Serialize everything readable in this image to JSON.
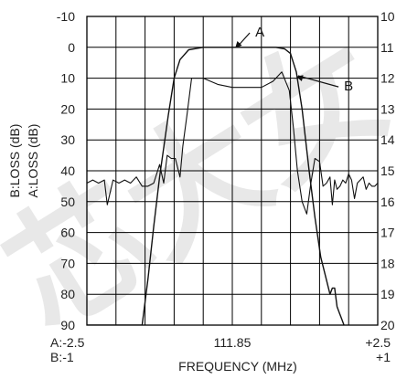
{
  "chart_data": {
    "type": "line",
    "title": "",
    "xlabel": "FREQUENCY (MHz)",
    "ylabel_left_outer": "B:LOSS (dB)",
    "ylabel_left_inner": "A:LOSS (dB)",
    "xlim": [
      -2.5,
      2.5
    ],
    "ylim": [
      -10,
      90
    ],
    "y_inverted": true,
    "grid": true,
    "x_tick_labels_top": [
      "A:-2.5",
      "111.85",
      "+2.5"
    ],
    "x_tick_labels_bottom": [
      "B:-1",
      "",
      "+1"
    ],
    "left_tick_values": [
      -10,
      0,
      10,
      20,
      30,
      40,
      50,
      60,
      70,
      80,
      90
    ],
    "left_tick_labels": [
      "-10",
      "0",
      "10",
      "20",
      "30",
      "40",
      "50",
      "60",
      "70",
      "80",
      "90"
    ],
    "right_tick_labels": [
      "10",
      "11",
      "12",
      "13",
      "14",
      "15",
      "16",
      "17",
      "18",
      "19",
      "20"
    ],
    "series": [
      {
        "name": "A",
        "x": [
          -2.5,
          -2.15,
          -2.0,
          -1.85,
          -1.7,
          -1.55,
          -1.45,
          -1.35,
          -1.25,
          -1.1,
          -1.0,
          -0.9,
          -0.75,
          -0.5,
          -0.25,
          0.0,
          0.25,
          0.5,
          0.75,
          0.9,
          1.0,
          1.1,
          1.2,
          1.32,
          1.42,
          1.52,
          1.6,
          1.68,
          1.72,
          1.76,
          1.8,
          1.84,
          1.88,
          1.92
        ],
        "y": [
          90,
          90,
          90,
          90,
          90,
          90,
          75,
          58,
          42,
          22,
          10,
          4,
          0.8,
          0,
          0,
          0,
          0,
          0,
          0,
          0.5,
          2,
          8,
          20,
          40,
          55,
          68,
          74,
          80,
          78,
          78,
          84,
          86,
          88,
          90
        ]
      },
      {
        "name": "B",
        "x": [
          -2.5,
          -2.4,
          -2.3,
          -2.2,
          -2.15,
          -2.05,
          -1.95,
          -1.85,
          -1.75,
          -1.65,
          -1.55,
          -1.45,
          -1.35,
          -1.25,
          -1.18,
          -1.12,
          -1.05,
          -0.98,
          -0.9,
          -0.85,
          -0.78,
          -0.7,
          -0.5,
          -0.25,
          0.0,
          0.25,
          0.5,
          0.7,
          0.85,
          0.98,
          1.05,
          1.12,
          1.2,
          1.28,
          1.35,
          1.42,
          1.5,
          1.56,
          1.62,
          1.68,
          1.72,
          1.76,
          1.8,
          1.85,
          1.9,
          1.95,
          2.0,
          2.05,
          2.1,
          2.15,
          2.2,
          2.25,
          2.3,
          2.35,
          2.4,
          2.45,
          2.5
        ],
        "y": [
          44,
          43,
          44,
          43,
          51,
          43,
          44,
          43,
          44,
          42,
          45,
          45,
          44,
          38,
          44,
          35,
          36,
          36,
          42,
          32,
          22,
          10,
          10,
          12,
          13,
          13,
          13,
          11,
          8,
          14,
          26,
          40,
          50,
          54,
          44,
          36,
          37,
          45,
          44,
          42,
          51,
          43,
          46,
          45,
          43,
          44,
          41,
          43,
          49,
          44,
          43,
          42,
          46,
          44,
          45,
          45,
          44
        ]
      }
    ],
    "annotations": [
      {
        "text": "A",
        "x": 0.3,
        "y": -3
      },
      {
        "text": "B",
        "x": 1.7,
        "y": 14
      }
    ]
  },
  "watermark": "芯大女"
}
